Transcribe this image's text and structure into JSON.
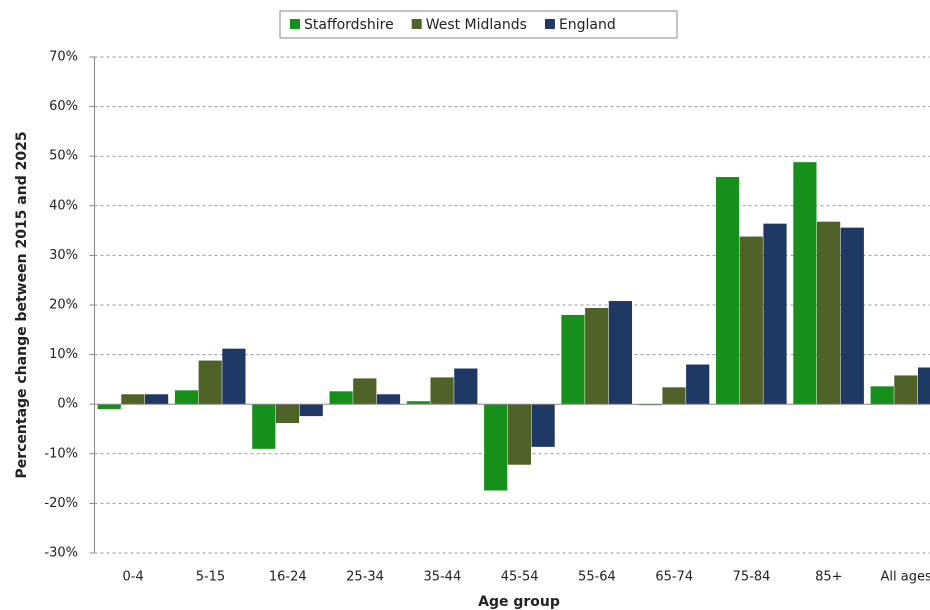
{
  "chart_data": {
    "type": "bar",
    "x_label": "Age group",
    "y_label": "Percentage change between 2015 and 2025",
    "categories": [
      "0-4",
      "5-15",
      "16-24",
      "25-34",
      "35-44",
      "45-54",
      "55-64",
      "65-74",
      "75-84",
      "85+",
      "All ages"
    ],
    "series": [
      {
        "name": "Staffordshire",
        "color": "#16901a",
        "values": [
          -1.0,
          2.8,
          -9.0,
          2.6,
          0.6,
          -17.4,
          18.0,
          -0.2,
          45.8,
          48.8,
          3.6
        ]
      },
      {
        "name": "West Midlands",
        "color": "#4f6228",
        "values": [
          2.0,
          8.8,
          -3.8,
          5.2,
          5.4,
          -12.2,
          19.4,
          3.4,
          33.8,
          36.8,
          5.8
        ]
      },
      {
        "name": "England",
        "color": "#1f3864",
        "values": [
          2.0,
          11.2,
          -2.4,
          2.0,
          7.2,
          -8.6,
          20.8,
          8.0,
          36.4,
          35.6,
          7.4
        ]
      }
    ],
    "ylim": [
      -30,
      70
    ],
    "yticks": [
      {
        "value": -30,
        "label": "-30%"
      },
      {
        "value": -20,
        "label": "-20%"
      },
      {
        "value": -10,
        "label": "-10%"
      },
      {
        "value": 0,
        "label": "0%"
      },
      {
        "value": 10,
        "label": "10%"
      },
      {
        "value": 20,
        "label": "20%"
      },
      {
        "value": 30,
        "label": "30%"
      },
      {
        "value": 40,
        "label": "40%"
      },
      {
        "value": 50,
        "label": "50%"
      },
      {
        "value": 60,
        "label": "60%"
      },
      {
        "value": 70,
        "label": "70%"
      }
    ],
    "grid": true,
    "legend": "top"
  }
}
